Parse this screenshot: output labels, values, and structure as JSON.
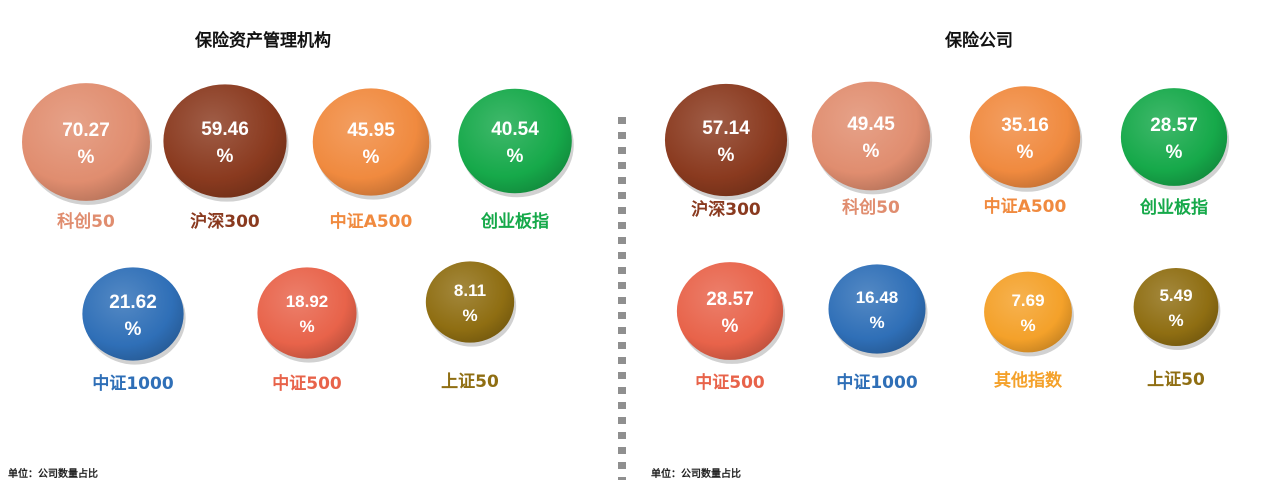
{
  "colors": {
    "kechuang": "#e08d6f",
    "hushen": "#8a3a1f",
    "zhongzhengA500": "#f08a3f",
    "chuangye": "#16a94a",
    "zz1000": "#2f6fb7",
    "zz500": "#e8634a",
    "sz50": "#8f6e12",
    "other": "#f4a12a"
  },
  "chart_data": [
    {
      "type": "bubble",
      "title": "保险资产管理机构",
      "unit_note": "单位：公司数量占比",
      "points": [
        {
          "name": "科创50",
          "value": 70.27,
          "color": "#e08d6f"
        },
        {
          "name": "沪深300",
          "value": 59.46,
          "color": "#8a3a1f"
        },
        {
          "name": "中证A500",
          "value": 45.95,
          "color": "#f08a3f"
        },
        {
          "name": "创业板指",
          "value": 40.54,
          "color": "#16a94a"
        },
        {
          "name": "中证1000",
          "value": 21.62,
          "color": "#2f6fb7"
        },
        {
          "name": "中证500",
          "value": 18.92,
          "color": "#e8634a"
        },
        {
          "name": "上证50",
          "value": 8.11,
          "color": "#8f6e12"
        }
      ]
    },
    {
      "type": "bubble",
      "title": "保险公司",
      "unit_note": "单位：公司数量占比",
      "points": [
        {
          "name": "沪深300",
          "value": 57.14,
          "color": "#8a3a1f"
        },
        {
          "name": "科创50",
          "value": 49.45,
          "color": "#e08d6f"
        },
        {
          "name": "中证A500",
          "value": 35.16,
          "color": "#f08a3f"
        },
        {
          "name": "创业板指",
          "value": 28.57,
          "color": "#16a94a"
        },
        {
          "name": "中证500",
          "value": 28.57,
          "color": "#e8634a"
        },
        {
          "name": "中证1000",
          "value": 16.48,
          "color": "#2f6fb7"
        },
        {
          "name": "其他指数",
          "value": 7.69,
          "color": "#f4a12a"
        },
        {
          "name": "上证50",
          "value": 5.49,
          "color": "#8f6e12"
        }
      ]
    }
  ]
}
